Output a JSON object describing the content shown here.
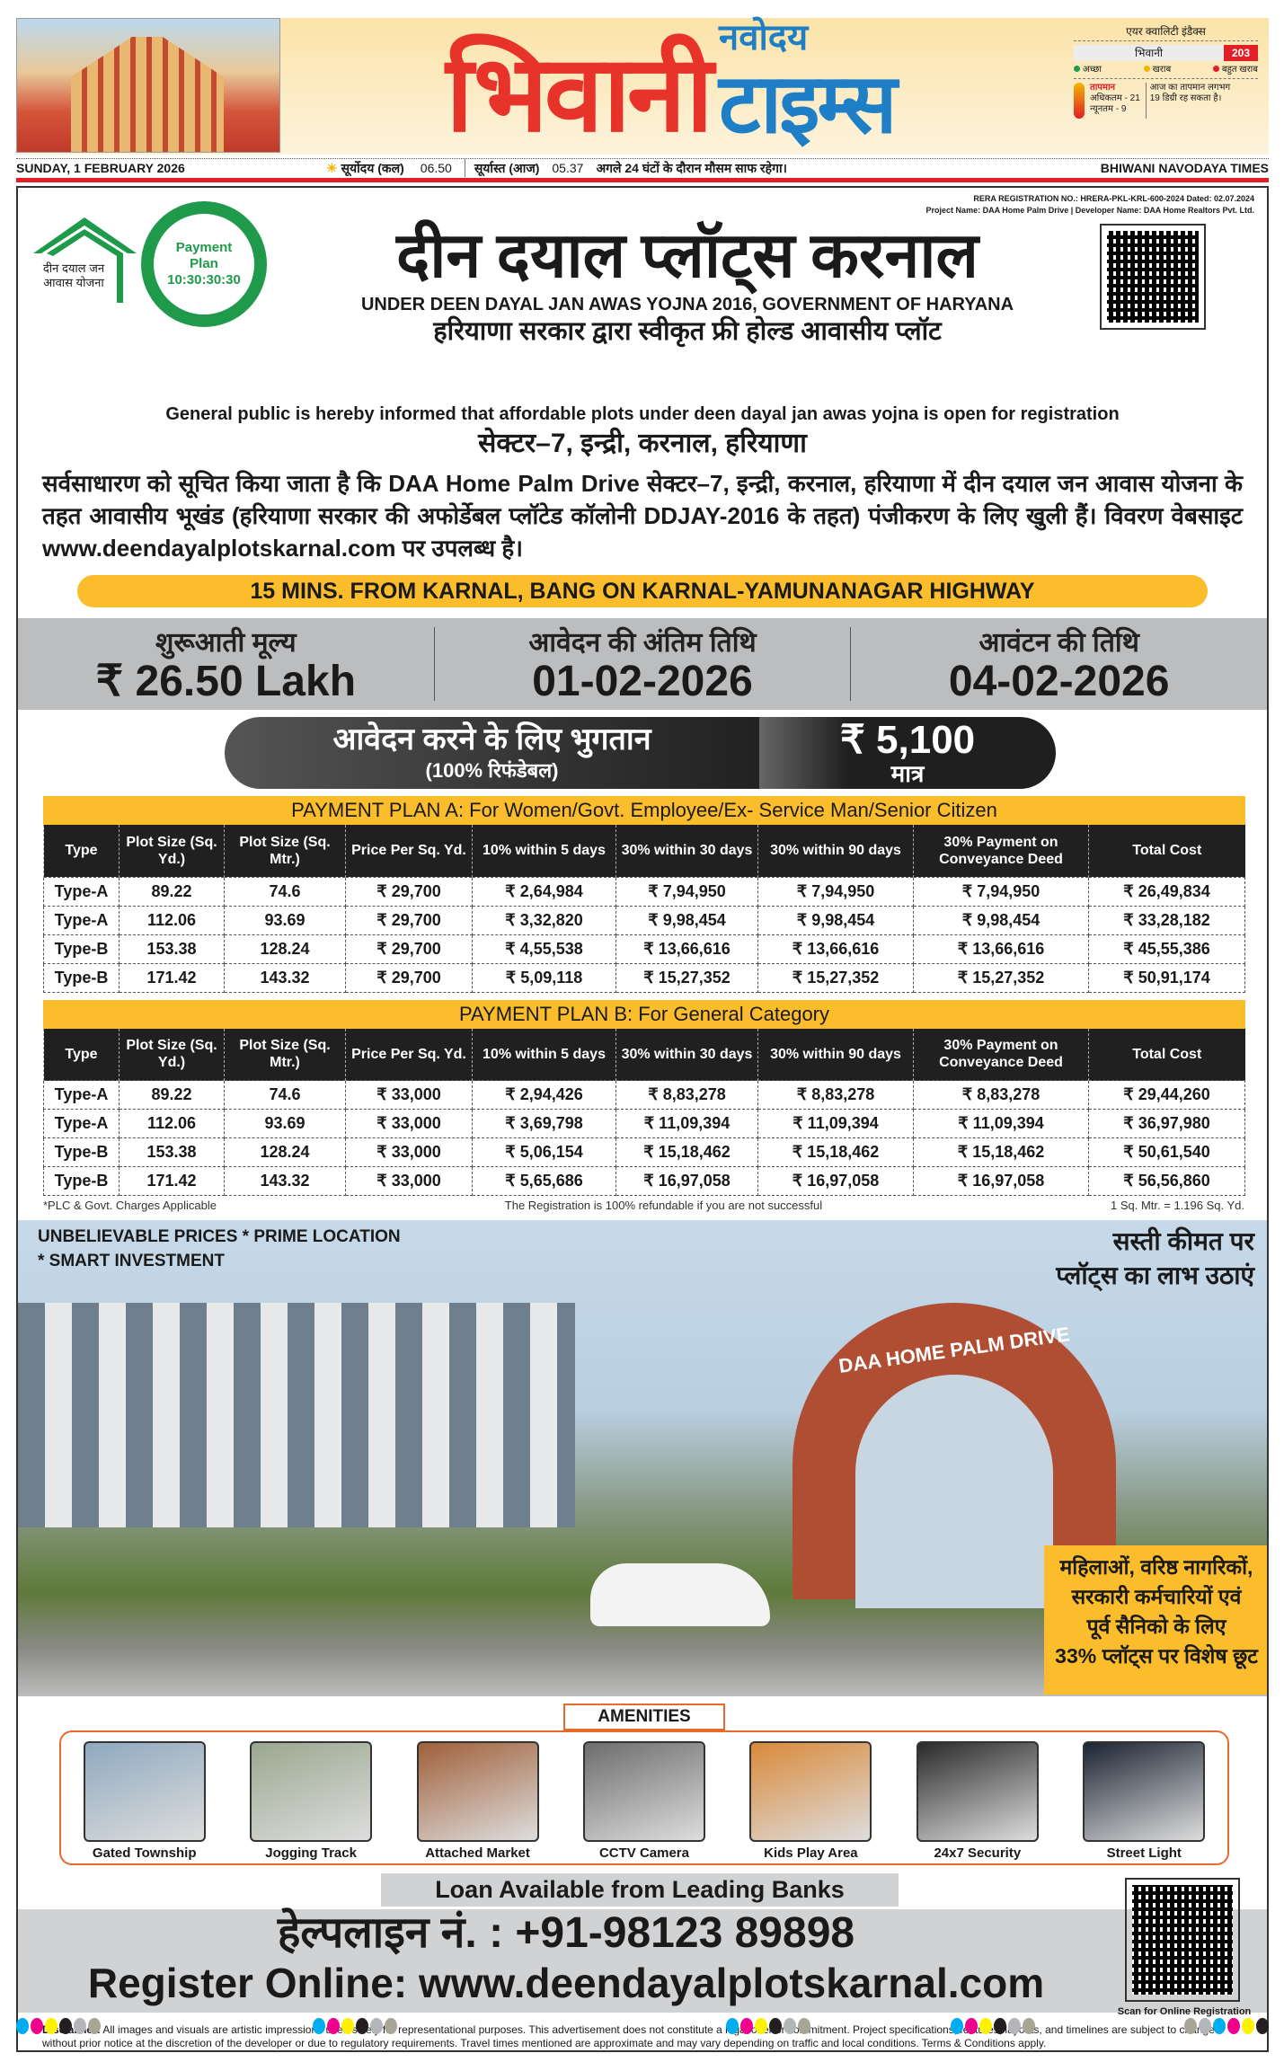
{
  "masthead": {
    "logo_main": "भिवानी",
    "logo_small": "नवोदय",
    "logo_second": "टाइम्स",
    "aqi": {
      "title": "एयर क्वालिटी इंडैक्स",
      "city": "भिवानी",
      "value": "203",
      "legend": [
        {
          "label": "अच्छा",
          "color": "#1f9a4a"
        },
        {
          "label": "खराब",
          "color": "#f4b400"
        },
        {
          "label": "बहुत खराब",
          "color": "#e21f26"
        }
      ]
    },
    "temperature": {
      "label": "तापमान",
      "max": "अधिकतम - 21",
      "min": "न्यूनतम - 9",
      "note": "आज का तापमान लगभग 19 डिग्री रह सकता है।"
    }
  },
  "datebar": {
    "date": "SUNDAY, 1 FEBRUARY 2026",
    "sunrise_label": "सूर्योदय (कल)",
    "sunrise": "06.50",
    "sunset_label": "सूर्यास्त (आज)",
    "sunset": "05.37",
    "weather": "अगले 24 घंटों के दौरान मौसम साफ रहेगा।",
    "paper": "BHIWANI NAVODAYA TIMES"
  },
  "ad": {
    "logo_text": "दीन दयाल जन आवास योजना",
    "badge": [
      "Payment",
      "Plan",
      "10:30:30:30"
    ],
    "rera": "RERA REGISTRATION NO.: HRERA-PKL-KRL-600-2024 Dated: 02.07.2024",
    "project": "Project Name: DAA Home Palm Drive  |  Developer Name: DAA Home Realtors Pvt. Ltd.",
    "title": "दीन दयाल प्लॉट्स करनाल",
    "subtitle_en": "UNDER DEEN DAYAL JAN AWAS YOJNA 2016, GOVERNMENT OF HARYANA",
    "subtitle_hi": "हरियाणा सरकार द्वारा स्वीकृत फ्री होल्ड आवासीय प्लॉट",
    "notice_en": "General public is hereby informed that affordable plots under deen dayal jan awas yojna is open for registration",
    "location": "सेक्टर–7, इन्द्री, करनाल, हरियाणा",
    "paragraph": "सर्वसाधारण को सूचित किया जाता है कि DAA Home Palm Drive सेक्टर–7, इन्द्री, करनाल, हरियाणा में दीन दयाल जन आवास योजना के तहत आवासीय भूखंड (हरियाणा सरकार की अफोर्डेबल प्लॉटेड कॉलोनी DDJAY-2016 के तहत) पंजीकरण के लिए खुली हैं। विवरण वेबसाइट www.deendayalplotskarnal.com पर उपलब्ध है।",
    "highway": "15 MINS. FROM KARNAL, BANG ON KARNAL-YAMUNANAGAR HIGHWAY",
    "band": [
      {
        "label": "शुरूआती मूल्य",
        "value": "₹ 26.50 Lakh"
      },
      {
        "label": "आवेदन की अंतिम तिथि",
        "value": "01-02-2026"
      },
      {
        "label": "आवंटन की तिथि",
        "value": "04-02-2026"
      }
    ],
    "payment": {
      "label": "आवेदन करने के लिए भुगतान",
      "sub": "(100% रिफंडेबल)",
      "amount": "₹ 5,100",
      "suffix": "मात्र"
    },
    "columns": [
      "Type",
      "Plot Size (Sq. Yd.)",
      "Plot Size (Sq. Mtr.)",
      "Price Per Sq. Yd.",
      "10% within 5 days",
      "30% within 30 days",
      "30% within 90 days",
      "30% Payment on Conveyance Deed",
      "Total Cost"
    ],
    "plan_a": {
      "title": "PAYMENT PLAN A: For Women/Govt. Employee/Ex- Service Man/Senior Citizen",
      "rows": [
        [
          "Type-A",
          "89.22",
          "74.6",
          "₹ 29,700",
          "₹ 2,64,984",
          "₹ 7,94,950",
          "₹ 7,94,950",
          "₹ 7,94,950",
          "₹ 26,49,834"
        ],
        [
          "Type-A",
          "112.06",
          "93.69",
          "₹ 29,700",
          "₹ 3,32,820",
          "₹ 9,98,454",
          "₹ 9,98,454",
          "₹ 9,98,454",
          "₹ 33,28,182"
        ],
        [
          "Type-B",
          "153.38",
          "128.24",
          "₹ 29,700",
          "₹ 4,55,538",
          "₹ 13,66,616",
          "₹ 13,66,616",
          "₹ 13,66,616",
          "₹ 45,55,386"
        ],
        [
          "Type-B",
          "171.42",
          "143.32",
          "₹ 29,700",
          "₹ 5,09,118",
          "₹ 15,27,352",
          "₹ 15,27,352",
          "₹ 15,27,352",
          "₹ 50,91,174"
        ]
      ]
    },
    "plan_b": {
      "title": "PAYMENT PLAN B: For General Category",
      "rows": [
        [
          "Type-A",
          "89.22",
          "74.6",
          "₹ 33,000",
          "₹ 2,94,426",
          "₹ 8,83,278",
          "₹ 8,83,278",
          "₹ 8,83,278",
          "₹ 29,44,260"
        ],
        [
          "Type-A",
          "112.06",
          "93.69",
          "₹ 33,000",
          "₹ 3,69,798",
          "₹ 11,09,394",
          "₹ 11,09,394",
          "₹ 11,09,394",
          "₹ 36,97,980"
        ],
        [
          "Type-B",
          "153.38",
          "128.24",
          "₹ 33,000",
          "₹ 5,06,154",
          "₹ 15,18,462",
          "₹ 15,18,462",
          "₹ 15,18,462",
          "₹ 50,61,540"
        ],
        [
          "Type-B",
          "171.42",
          "143.32",
          "₹ 33,000",
          "₹ 5,65,686",
          "₹ 16,97,058",
          "₹ 16,97,058",
          "₹ 16,97,058",
          "₹ 56,56,860"
        ]
      ]
    },
    "notes": [
      "*PLC & Govt. Charges Applicable",
      "The Registration is 100% refundable if you are not successful",
      "1 Sq. Mtr. = 1.196 Sq. Yd."
    ],
    "hero": {
      "left1": "UNBELIEVABLE PRICES * PRIME LOCATION",
      "left2": "* SMART INVESTMENT",
      "right1": "सस्ती कीमत पर",
      "right2": "प्लॉट्स का लाभ उठाएं",
      "arch": "DAA HOME PALM DRIVE",
      "offer": [
        "महिलाओं, वरिष्ठ नागरिकों,",
        "सरकारी कर्मचारियों एवं",
        "पूर्व सैनिको के लिए",
        "33% प्लॉट्स पर विशेष छूट"
      ]
    },
    "amenities_title": "AMENITIES",
    "amenities": [
      {
        "label": "Gated Township",
        "color": "#8fa9bf"
      },
      {
        "label": "Jogging Track",
        "color": "#9aa88f"
      },
      {
        "label": "Attached Market",
        "color": "#a0603a"
      },
      {
        "label": "CCTV Camera",
        "color": "#6d6d6d"
      },
      {
        "label": "Kids Play Area",
        "color": "#d98a3a"
      },
      {
        "label": "24x7 Security",
        "color": "#2a2a2a"
      },
      {
        "label": "Street Light",
        "color": "#1c2433"
      }
    ],
    "loan": "Loan Available from Leading Banks",
    "helpline": "हेल्पलाइन नं. : +91-98123 89898",
    "register": "Register Online: www.deendayalplotskarnal.com",
    "scan": "Scan for Online Registration",
    "disclaimer_label": "Disclaimer:",
    "disclaimer": " All images and visuals are artistic impressions used solely for representational purposes. This advertisement does not constitute a legal offer or commitment. Project specifications, features, layouts, and timelines are subject to change without prior notice at the discretion of the developer or due to regulatory requirements. Travel times mentioned are approximate and may vary depending on traffic and local conditions. Terms & Conditions apply."
  },
  "colors": {
    "red": "#e21f26",
    "blue": "#1e7fc6",
    "yellow": "#fbbd2c",
    "green": "#1f9a4a",
    "grey": "#bcbdbf"
  }
}
